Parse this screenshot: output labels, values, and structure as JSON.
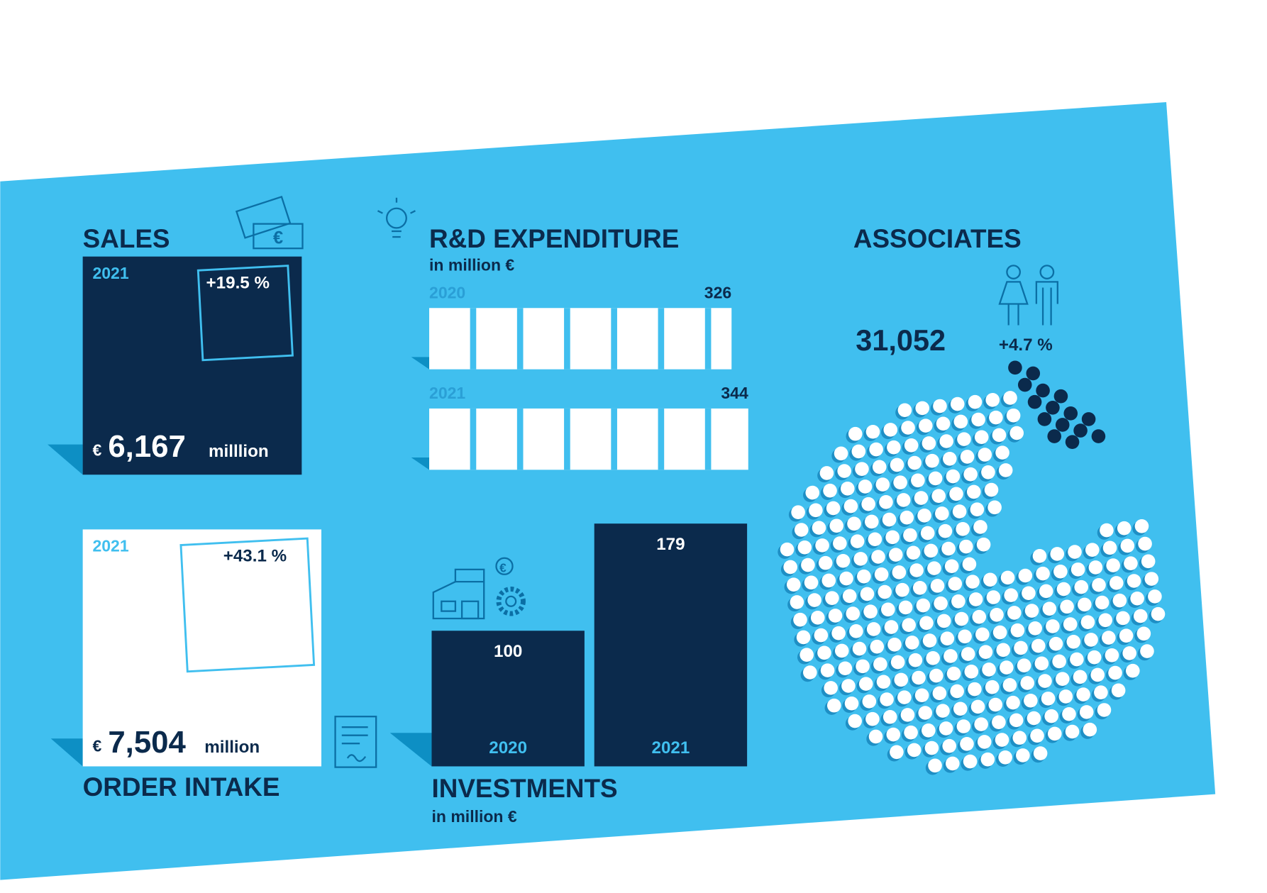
{
  "sales": {
    "title": "SALES",
    "year": "2021",
    "change": "+19.5 %",
    "currency": "€",
    "value": "6,167",
    "unit": "milllion"
  },
  "rd": {
    "title": "R&D EXPENDITURE",
    "subtitle": "in million €",
    "bars": [
      {
        "year": "2020",
        "value": 326
      },
      {
        "year": "2021",
        "value": 344
      }
    ]
  },
  "associates": {
    "title": "ASSOCIATES",
    "value": "31,052",
    "change": "+4.7 %"
  },
  "order_intake": {
    "title": "ORDER INTAKE",
    "year": "2021",
    "change": "+43.1 %",
    "currency": "€",
    "value": "7,504",
    "unit": "million"
  },
  "investments": {
    "title": "INVESTMENTS",
    "subtitle": "in million €",
    "bars": [
      {
        "year": "2020",
        "value": 100
      },
      {
        "year": "2021",
        "value": 179
      }
    ]
  }
}
